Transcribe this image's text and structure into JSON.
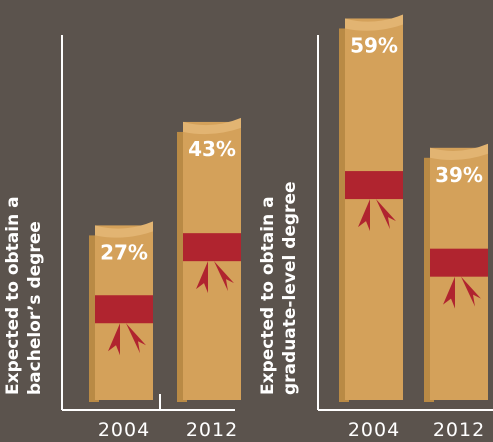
{
  "chart_data": [
    {
      "type": "bar",
      "y_label": "Expected to obtain a bachelor’s degree",
      "categories": [
        "2004",
        "2012"
      ],
      "values": [
        27,
        43
      ],
      "value_labels": [
        "27%",
        "43%"
      ],
      "color": "#d4a15a",
      "ylim": [
        0,
        60
      ]
    },
    {
      "type": "bar",
      "y_label": "Expected to obtain a graduate-level degree",
      "categories": [
        "2004",
        "2012"
      ],
      "values": [
        59,
        39
      ],
      "value_labels": [
        "59%",
        "39%"
      ],
      "color": "#d4a15a",
      "ylim": [
        0,
        60
      ]
    }
  ]
}
